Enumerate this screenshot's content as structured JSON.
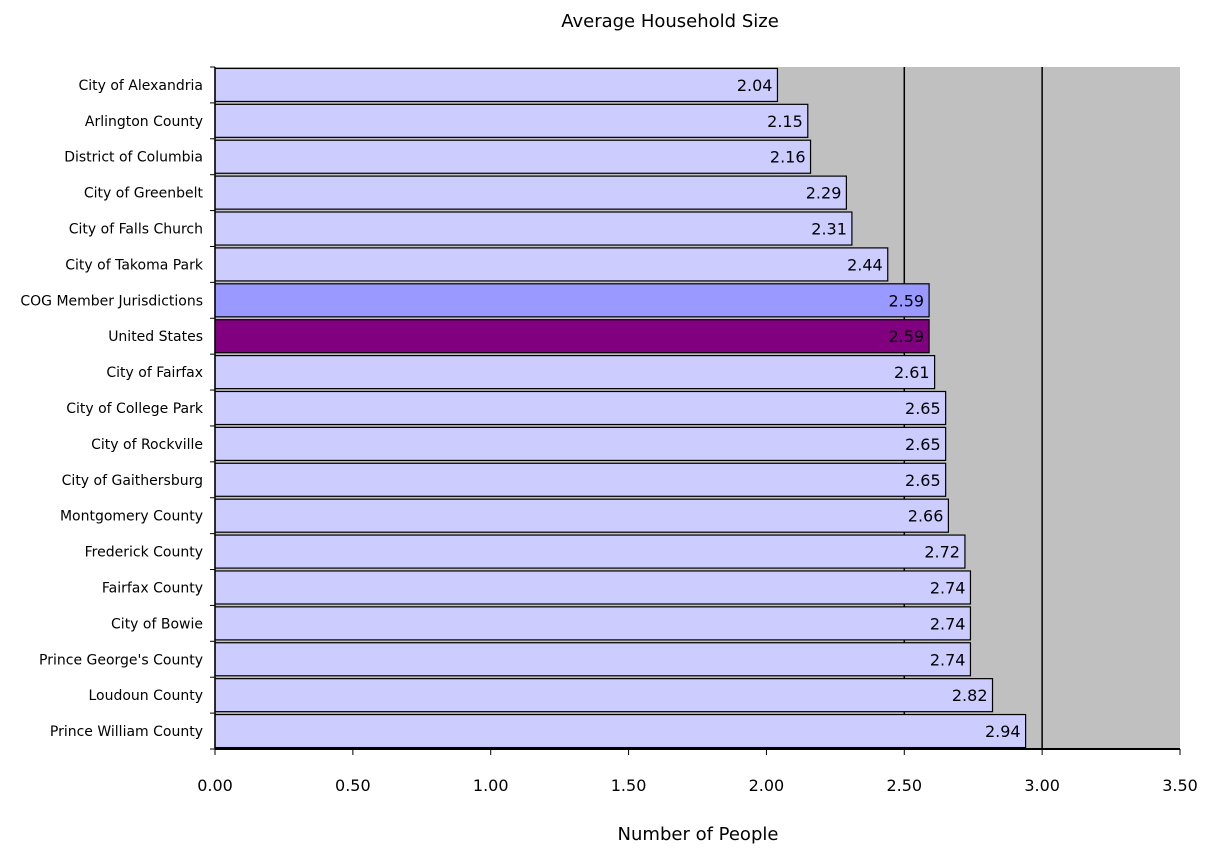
{
  "chart_data": {
    "type": "bar",
    "orientation": "horizontal",
    "title": "Average Household Size",
    "xlabel": "Number of People",
    "ylabel": "",
    "xlim": [
      0,
      3.5
    ],
    "x_ticks": [
      "0.00",
      "0.50",
      "1.00",
      "1.50",
      "2.00",
      "2.50",
      "3.00",
      "3.50"
    ],
    "grid": "vertical lines at 2.50 and 3.00",
    "plot_background": "#c0c0c0",
    "categories": [
      "City of Alexandria",
      "Arlington County",
      "District of Columbia",
      "City of Greenbelt",
      "City of Falls Church",
      "City of Takoma Park",
      "COG Member Jurisdictions",
      "United States",
      "City of Fairfax",
      "City of College Park",
      "City of Rockville",
      "City of Gaithersburg",
      "Montgomery County",
      "Frederick County",
      "Fairfax County",
      "City of Bowie",
      "Prince George's County",
      "Loudoun County",
      "Prince William County"
    ],
    "values": [
      2.04,
      2.15,
      2.16,
      2.29,
      2.31,
      2.44,
      2.59,
      2.59,
      2.61,
      2.65,
      2.65,
      2.65,
      2.66,
      2.72,
      2.74,
      2.74,
      2.74,
      2.82,
      2.94
    ],
    "value_labels": [
      "2.04",
      "2.15",
      "2.16",
      "2.29",
      "2.31",
      "2.44",
      "2.59",
      "2.59",
      "2.61",
      "2.65",
      "2.65",
      "2.65",
      "2.66",
      "2.72",
      "2.74",
      "2.74",
      "2.74",
      "2.82",
      "2.94"
    ],
    "colors": {
      "default_bar": "#ccccff",
      "COG Member Jurisdictions": "#9999ff",
      "United States": "#800080",
      "bar_border": "#000000"
    }
  }
}
